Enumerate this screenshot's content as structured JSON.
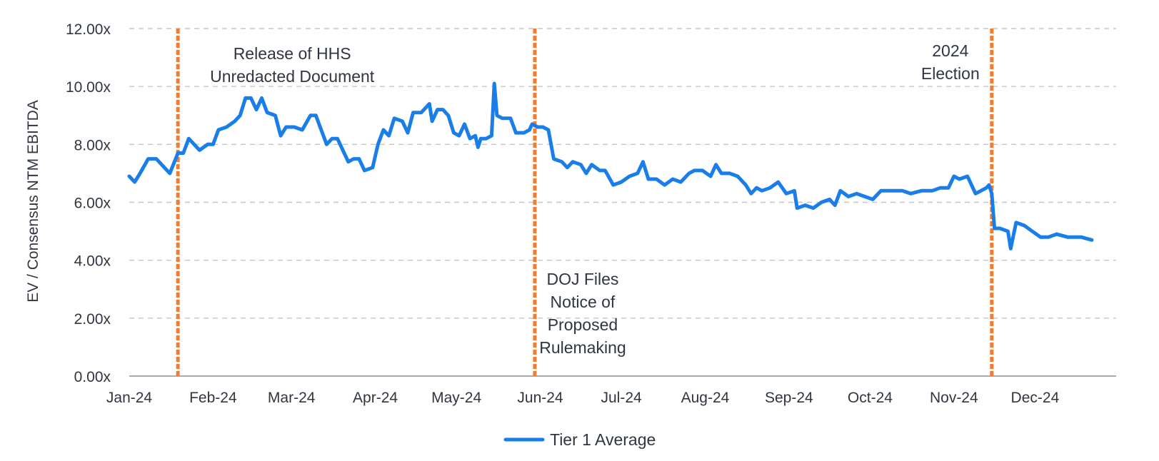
{
  "chart_data": {
    "type": "line",
    "ylabel": "EV / Consensus NTM EBITDA",
    "xlabel": "",
    "ylim": [
      0,
      12
    ],
    "y_ticks": [
      "0.00x",
      "2.00x",
      "4.00x",
      "6.00x",
      "8.00x",
      "10.00x",
      "12.00x"
    ],
    "x_range": [
      "2024-01-01",
      "2024-12-31"
    ],
    "x_ticks": [
      {
        "date": "2024-01-01",
        "label": "Jan-24"
      },
      {
        "date": "2024-02-01",
        "label": "Feb-24"
      },
      {
        "date": "2024-03-01",
        "label": "Mar-24"
      },
      {
        "date": "2024-04-01",
        "label": "Apr-24"
      },
      {
        "date": "2024-05-01",
        "label": "May-24"
      },
      {
        "date": "2024-06-01",
        "label": "Jun-24"
      },
      {
        "date": "2024-07-01",
        "label": "Jul-24"
      },
      {
        "date": "2024-08-01",
        "label": "Aug-24"
      },
      {
        "date": "2024-09-01",
        "label": "Sep-24"
      },
      {
        "date": "2024-10-01",
        "label": "Oct-24"
      },
      {
        "date": "2024-11-01",
        "label": "Nov-24"
      },
      {
        "date": "2024-12-01",
        "label": "Dec-24"
      }
    ],
    "grid": true,
    "legend_position": "bottom-center",
    "series": [
      {
        "name": "Tier 1 Average",
        "color": "#1a7ee8",
        "points": [
          [
            "2024-01-01",
            6.9
          ],
          [
            "2024-01-03",
            6.7
          ],
          [
            "2024-01-05",
            7.0
          ],
          [
            "2024-01-08",
            7.5
          ],
          [
            "2024-01-11",
            7.5
          ],
          [
            "2024-01-14",
            7.2
          ],
          [
            "2024-01-16",
            7.0
          ],
          [
            "2024-01-19",
            7.7
          ],
          [
            "2024-01-21",
            7.7
          ],
          [
            "2024-01-23",
            8.2
          ],
          [
            "2024-01-25",
            8.0
          ],
          [
            "2024-01-27",
            7.8
          ],
          [
            "2024-01-30",
            8.0
          ],
          [
            "2024-02-01",
            8.0
          ],
          [
            "2024-02-03",
            8.5
          ],
          [
            "2024-02-06",
            8.6
          ],
          [
            "2024-02-09",
            8.8
          ],
          [
            "2024-02-11",
            9.0
          ],
          [
            "2024-02-13",
            9.6
          ],
          [
            "2024-02-15",
            9.6
          ],
          [
            "2024-02-17",
            9.2
          ],
          [
            "2024-02-19",
            9.6
          ],
          [
            "2024-02-21",
            9.1
          ],
          [
            "2024-02-24",
            9.0
          ],
          [
            "2024-02-26",
            8.3
          ],
          [
            "2024-02-28",
            8.6
          ],
          [
            "2024-03-02",
            8.6
          ],
          [
            "2024-03-05",
            8.5
          ],
          [
            "2024-03-08",
            9.0
          ],
          [
            "2024-03-10",
            9.0
          ],
          [
            "2024-03-12",
            8.5
          ],
          [
            "2024-03-14",
            8.0
          ],
          [
            "2024-03-16",
            8.2
          ],
          [
            "2024-03-18",
            8.2
          ],
          [
            "2024-03-20",
            7.8
          ],
          [
            "2024-03-22",
            7.4
          ],
          [
            "2024-03-24",
            7.5
          ],
          [
            "2024-03-26",
            7.5
          ],
          [
            "2024-03-28",
            7.1
          ],
          [
            "2024-03-31",
            7.2
          ],
          [
            "2024-04-02",
            8.0
          ],
          [
            "2024-04-04",
            8.5
          ],
          [
            "2024-04-06",
            8.3
          ],
          [
            "2024-04-08",
            8.9
          ],
          [
            "2024-04-11",
            8.8
          ],
          [
            "2024-04-13",
            8.4
          ],
          [
            "2024-04-15",
            9.1
          ],
          [
            "2024-04-18",
            9.1
          ],
          [
            "2024-04-20",
            9.3
          ],
          [
            "2024-04-21",
            9.4
          ],
          [
            "2024-04-22",
            8.8
          ],
          [
            "2024-04-24",
            9.2
          ],
          [
            "2024-04-26",
            9.2
          ],
          [
            "2024-04-28",
            9.0
          ],
          [
            "2024-04-30",
            8.4
          ],
          [
            "2024-05-02",
            8.3
          ],
          [
            "2024-05-04",
            8.7
          ],
          [
            "2024-05-06",
            8.2
          ],
          [
            "2024-05-08",
            8.3
          ],
          [
            "2024-05-09",
            7.9
          ],
          [
            "2024-05-10",
            8.2
          ],
          [
            "2024-05-12",
            8.2
          ],
          [
            "2024-05-14",
            8.3
          ],
          [
            "2024-05-15",
            10.1
          ],
          [
            "2024-05-16",
            9.0
          ],
          [
            "2024-05-18",
            8.9
          ],
          [
            "2024-05-21",
            8.9
          ],
          [
            "2024-05-23",
            8.4
          ],
          [
            "2024-05-26",
            8.4
          ],
          [
            "2024-05-28",
            8.5
          ],
          [
            "2024-05-29",
            8.7
          ],
          [
            "2024-05-31",
            8.6
          ],
          [
            "2024-06-02",
            8.6
          ],
          [
            "2024-06-04",
            8.5
          ],
          [
            "2024-06-06",
            7.5
          ],
          [
            "2024-06-09",
            7.4
          ],
          [
            "2024-06-11",
            7.2
          ],
          [
            "2024-06-13",
            7.4
          ],
          [
            "2024-06-16",
            7.3
          ],
          [
            "2024-06-18",
            7.0
          ],
          [
            "2024-06-20",
            7.3
          ],
          [
            "2024-06-23",
            7.1
          ],
          [
            "2024-06-25",
            7.1
          ],
          [
            "2024-06-28",
            6.6
          ],
          [
            "2024-07-01",
            6.7
          ],
          [
            "2024-07-04",
            6.9
          ],
          [
            "2024-07-07",
            7.0
          ],
          [
            "2024-07-09",
            7.4
          ],
          [
            "2024-07-11",
            6.8
          ],
          [
            "2024-07-14",
            6.8
          ],
          [
            "2024-07-17",
            6.6
          ],
          [
            "2024-07-20",
            6.8
          ],
          [
            "2024-07-23",
            6.7
          ],
          [
            "2024-07-26",
            7.0
          ],
          [
            "2024-07-28",
            7.1
          ],
          [
            "2024-07-31",
            7.1
          ],
          [
            "2024-08-03",
            6.9
          ],
          [
            "2024-08-05",
            7.3
          ],
          [
            "2024-08-07",
            7.0
          ],
          [
            "2024-08-10",
            7.0
          ],
          [
            "2024-08-13",
            6.9
          ],
          [
            "2024-08-16",
            6.6
          ],
          [
            "2024-08-18",
            6.3
          ],
          [
            "2024-08-20",
            6.5
          ],
          [
            "2024-08-22",
            6.4
          ],
          [
            "2024-08-25",
            6.5
          ],
          [
            "2024-08-28",
            6.7
          ],
          [
            "2024-08-31",
            6.3
          ],
          [
            "2024-09-03",
            6.4
          ],
          [
            "2024-09-04",
            5.8
          ],
          [
            "2024-09-07",
            5.9
          ],
          [
            "2024-09-10",
            5.8
          ],
          [
            "2024-09-13",
            6.0
          ],
          [
            "2024-09-16",
            6.1
          ],
          [
            "2024-09-18",
            5.9
          ],
          [
            "2024-09-20",
            6.4
          ],
          [
            "2024-09-23",
            6.2
          ],
          [
            "2024-09-26",
            6.3
          ],
          [
            "2024-09-29",
            6.2
          ],
          [
            "2024-10-02",
            6.1
          ],
          [
            "2024-10-05",
            6.4
          ],
          [
            "2024-10-09",
            6.4
          ],
          [
            "2024-10-13",
            6.4
          ],
          [
            "2024-10-16",
            6.3
          ],
          [
            "2024-10-20",
            6.4
          ],
          [
            "2024-10-24",
            6.4
          ],
          [
            "2024-10-27",
            6.5
          ],
          [
            "2024-10-30",
            6.5
          ],
          [
            "2024-11-01",
            6.9
          ],
          [
            "2024-11-03",
            6.8
          ],
          [
            "2024-11-06",
            6.9
          ],
          [
            "2024-11-09",
            6.3
          ],
          [
            "2024-11-11",
            6.4
          ],
          [
            "2024-11-13",
            6.5
          ],
          [
            "2024-11-14",
            6.6
          ],
          [
            "2024-11-15",
            6.3
          ],
          [
            "2024-11-16",
            5.1
          ],
          [
            "2024-11-18",
            5.1
          ],
          [
            "2024-11-21",
            5.0
          ],
          [
            "2024-11-22",
            4.4
          ],
          [
            "2024-11-24",
            5.3
          ],
          [
            "2024-11-27",
            5.2
          ],
          [
            "2024-11-30",
            5.0
          ],
          [
            "2024-12-03",
            4.8
          ],
          [
            "2024-12-06",
            4.8
          ],
          [
            "2024-12-09",
            4.9
          ],
          [
            "2024-12-13",
            4.8
          ],
          [
            "2024-12-18",
            4.8
          ],
          [
            "2024-12-22",
            4.7
          ]
        ]
      }
    ],
    "events": [
      {
        "date": "2024-01-19",
        "lines": [
          "Release of HHS",
          "Unredacted Document"
        ],
        "anchor": "right-top"
      },
      {
        "date": "2024-05-30",
        "lines": [
          "DOJ Files",
          "Notice of",
          "Proposed",
          "Rulemaking"
        ],
        "anchor": "right-bottom"
      },
      {
        "date": "2024-11-15",
        "lines": [
          "2024",
          "Election"
        ],
        "anchor": "left-top"
      }
    ],
    "event_color": "#f07d33",
    "grid_color": "#c6c6c6"
  }
}
